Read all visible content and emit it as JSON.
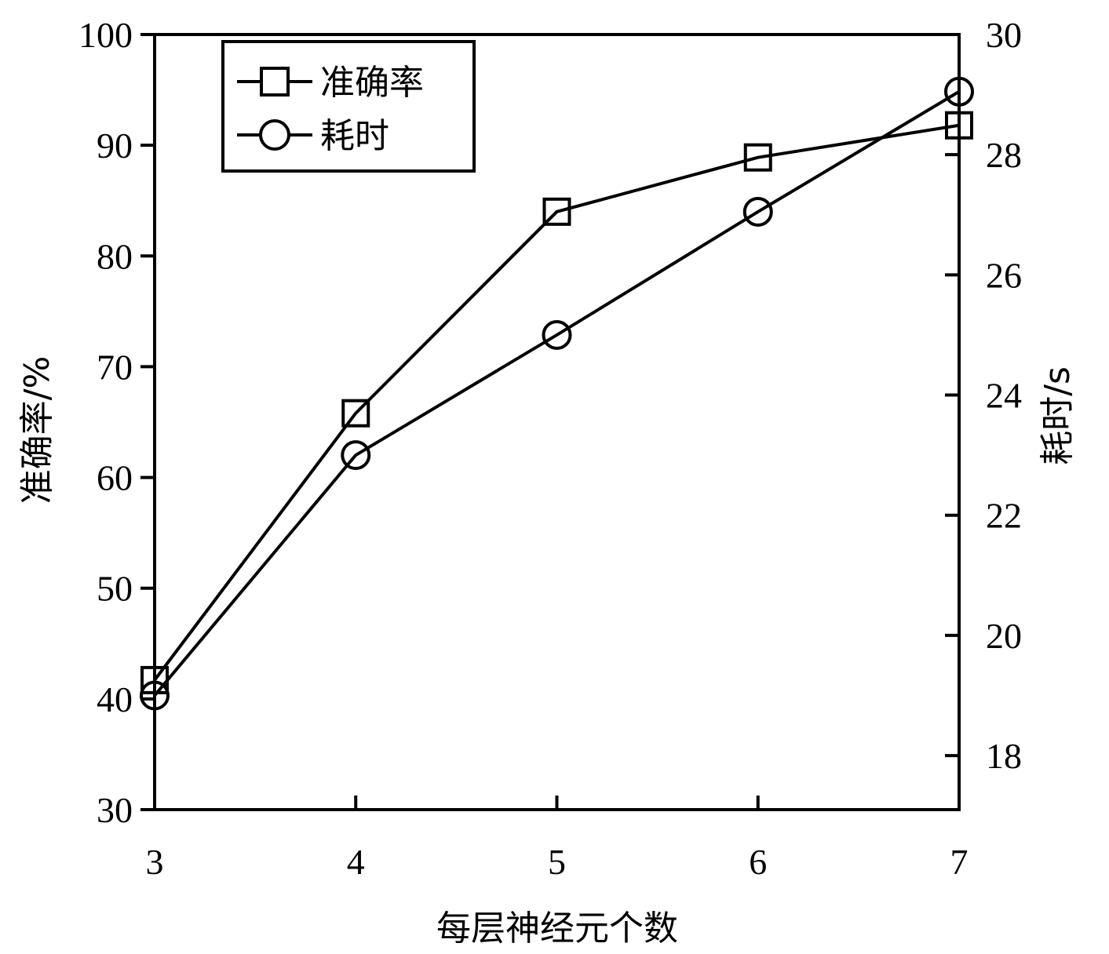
{
  "chart_data": {
    "type": "line",
    "x": [
      3,
      4,
      5,
      6,
      7
    ],
    "xlabel": "每层神经元个数",
    "x_ticks": [
      "3",
      "4",
      "5",
      "6",
      "7"
    ],
    "left_axis": {
      "label": "准确率/%",
      "ylim": [
        30,
        100
      ],
      "ticks": [
        "30",
        "40",
        "50",
        "60",
        "70",
        "80",
        "90",
        "100"
      ]
    },
    "right_axis": {
      "label": "耗时/s",
      "ylim": [
        17.1,
        30
      ],
      "ticks": [
        "18",
        "20",
        "22",
        "24",
        "26",
        "28",
        "30"
      ]
    },
    "series": [
      {
        "name": "准确率",
        "axis": "left",
        "marker": "square",
        "values": [
          41.7,
          65.8,
          84.0,
          88.9,
          91.8
        ]
      },
      {
        "name": "耗时",
        "axis": "right",
        "marker": "circle",
        "values": [
          19.0,
          23.0,
          25.0,
          27.05,
          29.05
        ]
      }
    ],
    "legend": {
      "placement": "top-left",
      "items": [
        "准确率",
        "耗时"
      ]
    },
    "grid": false,
    "colors": {
      "line": "#000000",
      "background": "#ffffff"
    }
  }
}
